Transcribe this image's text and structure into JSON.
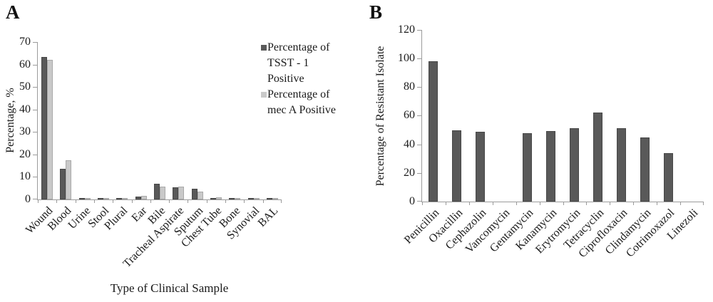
{
  "colors": {
    "bar_dark": "#595959",
    "bar_light": "#c9c9c9",
    "axis": "#9b9b9b",
    "text": "#1a1a1a"
  },
  "panels": [
    {
      "label": "A",
      "legend": [
        {
          "label": "Percentage of\nTSST - 1\nPositive",
          "color_key": "dark"
        },
        {
          "label": "Percentage of\nmec A Positive",
          "color_key": "light"
        }
      ]
    },
    {
      "label": "B"
    }
  ],
  "chart_data": [
    {
      "type": "bar",
      "title": "",
      "categories": [
        "Wound",
        "Blood",
        "Urine",
        "Stool",
        "Plural",
        "Ear",
        "Bile",
        "Tracheal Aspirate",
        "Sputum",
        "Chest Tube",
        "Bone",
        "Synovial",
        "BAL"
      ],
      "series": [
        {
          "name": "Percentage of TSST - 1 Positive",
          "values": [
            63.5,
            13.5,
            0.6,
            0.6,
            0.6,
            1.3,
            7,
            5.3,
            4.7,
            0.6,
            0.7,
            0.6,
            0.6
          ]
        },
        {
          "name": "Percentage of mec A Positive",
          "values": [
            62,
            17.5,
            0.5,
            0.5,
            0.5,
            1.5,
            5.8,
            5.8,
            3.4,
            1.1,
            0.5,
            0.3,
            0.5
          ]
        }
      ],
      "xlabel": "Type of Clinical Sample",
      "ylabel": "Percentage, %",
      "ylim": [
        0,
        70
      ],
      "ytick_step": 10,
      "grid": false,
      "legend_position": "right"
    },
    {
      "type": "bar",
      "title": "",
      "categories": [
        "Penicillin",
        "Oxacillin",
        "Cephazolin",
        "Vancomycin",
        "Gentamycin",
        "Kanamycin",
        "Erytromycin",
        "Tetracyclin",
        "Ciprofloxacin",
        "Clindamycin",
        "Cotrimoxazol",
        "Linezoli"
      ],
      "values": [
        98,
        50,
        49,
        0,
        48,
        49.5,
        51.5,
        62,
        51.5,
        45,
        34,
        0
      ],
      "xlabel": "",
      "ylabel": "Percentage of Resistant Isolate",
      "ylim": [
        0,
        120
      ],
      "ytick_step": 20,
      "grid": false,
      "legend_position": "none"
    }
  ]
}
